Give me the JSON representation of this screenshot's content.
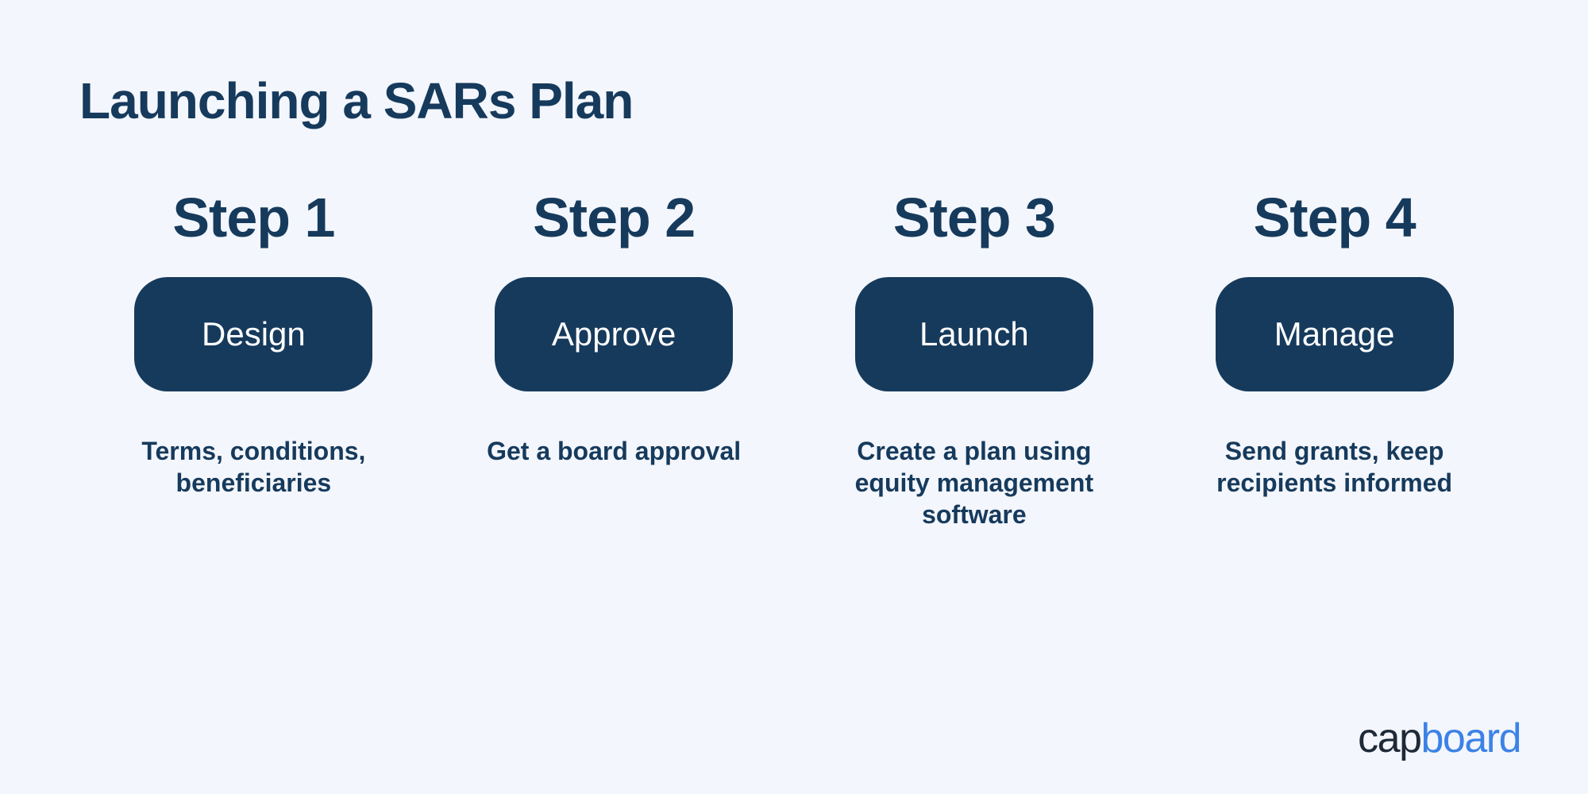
{
  "infographic": {
    "type": "infographic",
    "title": "Launching a SARs Plan",
    "background_color": "#f3f6fc",
    "primary_color": "#163a5c",
    "pill_background": "#163a5c",
    "pill_text_color": "#ffffff",
    "pill_border_radius": 42,
    "title_fontsize": 64,
    "step_label_fontsize": 70,
    "pill_fontsize": 42,
    "description_fontsize": 32,
    "steps": [
      {
        "label": "Step 1",
        "pill": "Design",
        "description": "Terms, conditions, beneficiaries"
      },
      {
        "label": "Step 2",
        "pill": "Approve",
        "description": "Get a board approval"
      },
      {
        "label": "Step 3",
        "pill": "Launch",
        "description": "Create a plan using equity management software"
      },
      {
        "label": "Step 4",
        "pill": "Manage",
        "description": "Send grants, keep recipients informed"
      }
    ]
  },
  "logo": {
    "part1": "cap",
    "part2": "board",
    "part1_color": "#1f2937",
    "part2_color": "#3b82e6",
    "fontsize": 52
  }
}
